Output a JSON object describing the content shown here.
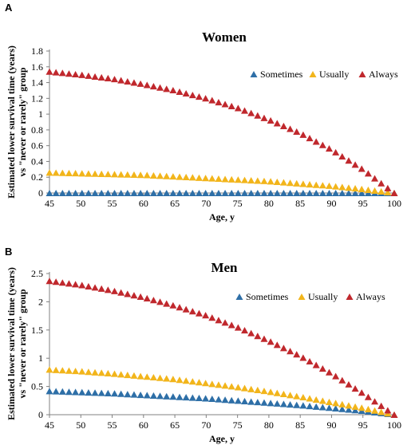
{
  "panels": [
    {
      "letter": "A"
    },
    {
      "letter": "B"
    }
  ],
  "colors": {
    "Sometimes": "#2e6fa7",
    "Usually": "#f2b51b",
    "Always": "#c0282d"
  },
  "chart_data": [
    {
      "type": "scatter",
      "title": "Women",
      "xlabel": "Age, y",
      "ylabel": "Estimated lower survival time (years) vs \"never or rarely\" group",
      "ylabel_lines": [
        "Estimated lower survival time (years)",
        "vs \"never or rarely\" group"
      ],
      "xlim": [
        45,
        100
      ],
      "ylim": [
        0,
        1.8
      ],
      "xticks": [
        "45",
        "50",
        "55",
        "60",
        "65",
        "70",
        "75",
        "80",
        "85",
        "90",
        "95",
        "100"
      ],
      "yticks": [
        "0",
        "0.2",
        "0.4",
        "0.6",
        "0.8",
        "1",
        "1.2",
        "1.4",
        "1.6",
        "1.8"
      ],
      "x": [
        45,
        50,
        55,
        60,
        65,
        70,
        75,
        80,
        85,
        90,
        95,
        100
      ],
      "legend_position": "top-right",
      "marker": "triangle",
      "series": [
        {
          "name": "Sometimes",
          "values": [
            0.0,
            0.0,
            0.0,
            0.0,
            0.0,
            0.0,
            0.0,
            0.0,
            0.0,
            0.0,
            0.0,
            0.0
          ]
        },
        {
          "name": "Usually",
          "values": [
            0.26,
            0.25,
            0.24,
            0.23,
            0.21,
            0.19,
            0.17,
            0.15,
            0.12,
            0.09,
            0.05,
            0.0
          ]
        },
        {
          "name": "Always",
          "values": [
            1.54,
            1.5,
            1.45,
            1.38,
            1.3,
            1.2,
            1.08,
            0.93,
            0.76,
            0.55,
            0.3,
            0.0
          ]
        }
      ]
    },
    {
      "type": "scatter",
      "title": "Men",
      "xlabel": "Age, y",
      "ylabel": "Estimated lower survival time (years) vs \"never or rarely\" group",
      "ylabel_lines": [
        "Estimated lower survival time (years)",
        "vs \"never or rarely\" group"
      ],
      "xlim": [
        45,
        100
      ],
      "ylim": [
        0,
        2.5
      ],
      "xticks": [
        "45",
        "50",
        "55",
        "60",
        "65",
        "70",
        "75",
        "80",
        "85",
        "90",
        "95",
        "100"
      ],
      "yticks": [
        "0",
        "0.5",
        "1",
        "1.5",
        "2",
        "2.5"
      ],
      "x": [
        45,
        50,
        55,
        60,
        65,
        70,
        75,
        80,
        85,
        90,
        95,
        100
      ],
      "legend_position": "top-right",
      "marker": "triangle",
      "series": [
        {
          "name": "Sometimes",
          "values": [
            0.42,
            0.4,
            0.38,
            0.35,
            0.32,
            0.29,
            0.25,
            0.21,
            0.17,
            0.12,
            0.07,
            0.0
          ]
        },
        {
          "name": "Usually",
          "values": [
            0.8,
            0.77,
            0.73,
            0.68,
            0.63,
            0.56,
            0.49,
            0.41,
            0.32,
            0.22,
            0.12,
            0.0
          ]
        },
        {
          "name": "Always",
          "values": [
            2.37,
            2.3,
            2.2,
            2.08,
            1.93,
            1.76,
            1.55,
            1.31,
            1.04,
            0.73,
            0.38,
            0.0
          ]
        }
      ]
    }
  ]
}
